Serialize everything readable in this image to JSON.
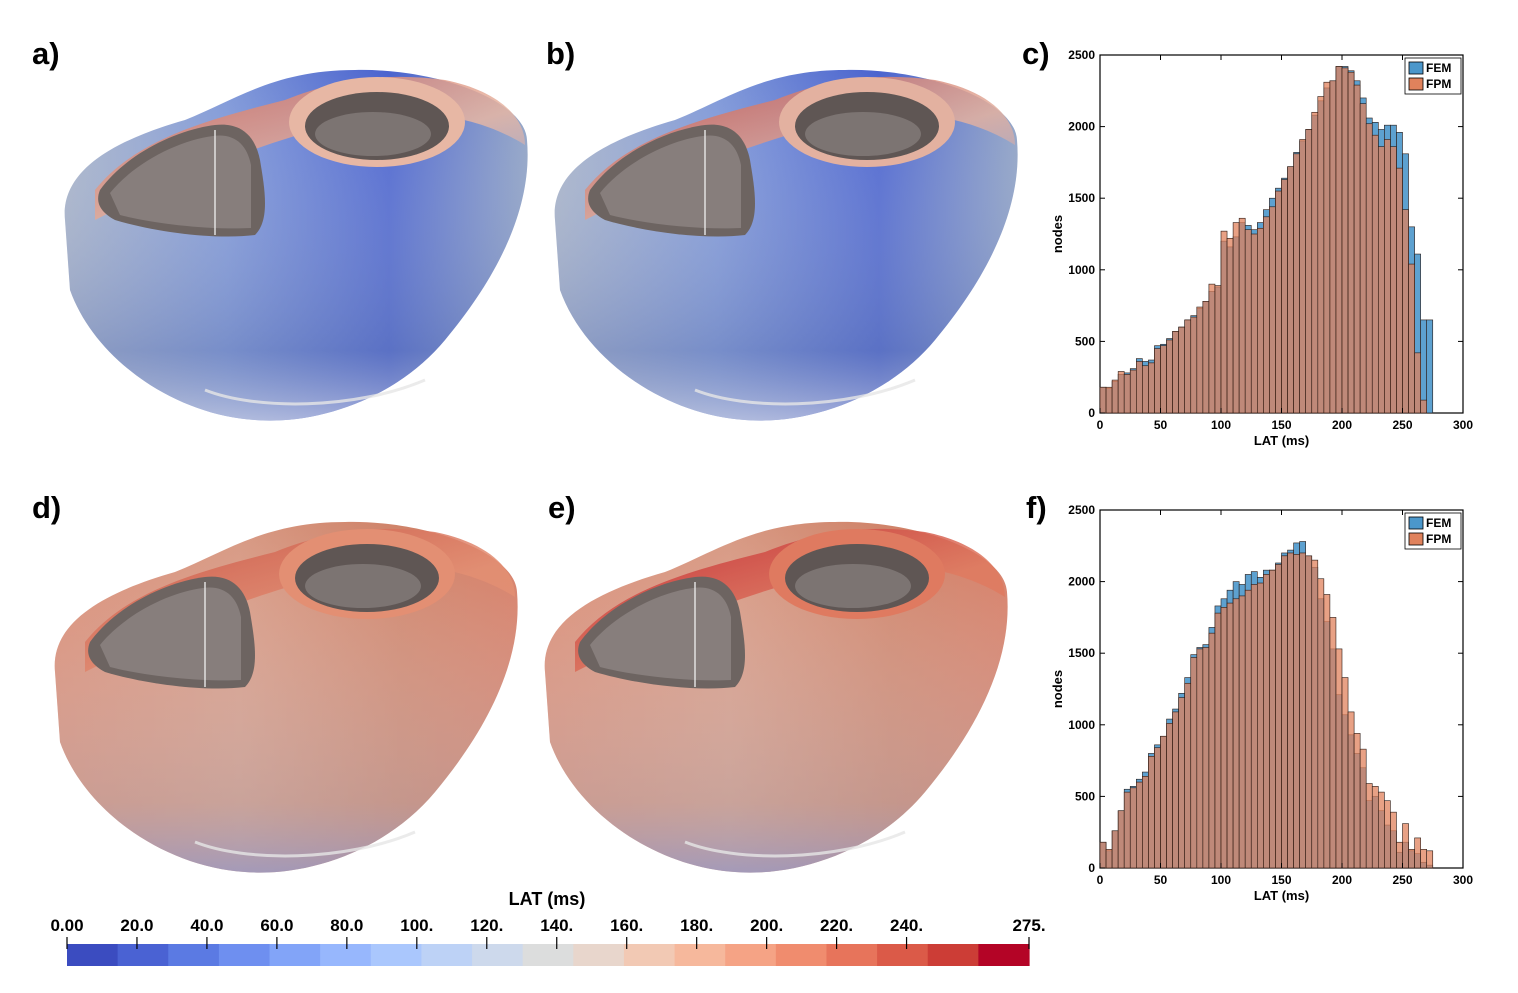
{
  "panels": {
    "a": "a)",
    "b": "b)",
    "c": "c)",
    "d": "d)",
    "e": "e)",
    "f": "f)"
  },
  "colorbar": {
    "title": "LAT (ms)",
    "tick_labels": [
      "0.00",
      "20.0",
      "40.0",
      "60.0",
      "80.0",
      "100.",
      "120.",
      "140.",
      "160.",
      "180.",
      "200.",
      "220.",
      "240.",
      "275."
    ],
    "tick_values": [
      0,
      20,
      40,
      60,
      80,
      100,
      120,
      140,
      160,
      180,
      200,
      220,
      240,
      275
    ],
    "range": [
      0,
      275
    ],
    "colors": [
      "#3b4cc0",
      "#4a62d3",
      "#5b7ae3",
      "#6e8ff0",
      "#82a4f8",
      "#97b7fd",
      "#aac7fd",
      "#bdd2f6",
      "#cdd9ec",
      "#dcdddd",
      "#e8d6cc",
      "#f2c9b4",
      "#f6b89c",
      "#f5a385",
      "#f08c6e",
      "#e7745b",
      "#db5a48",
      "#cc3d36",
      "#b40426"
    ]
  },
  "heart_panels": [
    {
      "panel": "a",
      "colormap": "blue",
      "rim": "#e7b7a4",
      "top": "#d26150"
    },
    {
      "panel": "b",
      "colormap": "blue",
      "rim": "#e3b1a0",
      "top": "#c94b3e"
    },
    {
      "panel": "d",
      "colormap": "red",
      "rim": "#e38f73",
      "top": "#c94b3e"
    },
    {
      "panel": "e",
      "colormap": "red",
      "rim": "#df7a60",
      "top": "#c21d2a"
    }
  ],
  "chart_data": [
    {
      "type": "bar",
      "panel": "c",
      "xlabel": "LAT (ms)",
      "ylabel": "nodes",
      "xlim": [
        0,
        300
      ],
      "ylim": [
        0,
        2500
      ],
      "xticks": [
        0,
        50,
        100,
        150,
        200,
        250,
        300
      ],
      "yticks": [
        0,
        500,
        1000,
        1500,
        2000,
        2500
      ],
      "bin_width": 5,
      "bin_starts": [
        0,
        5,
        10,
        15,
        20,
        25,
        30,
        35,
        40,
        45,
        50,
        55,
        60,
        65,
        70,
        75,
        80,
        85,
        90,
        95,
        100,
        105,
        110,
        115,
        120,
        125,
        130,
        135,
        140,
        145,
        150,
        155,
        160,
        165,
        170,
        175,
        180,
        185,
        190,
        195,
        200,
        205,
        210,
        215,
        220,
        225,
        230,
        235,
        240,
        245,
        250,
        255,
        260,
        265,
        270
      ],
      "legend": "top-right",
      "series": [
        {
          "name": "FEM",
          "color": "#4b97cb",
          "values": [
            180,
            170,
            220,
            270,
            280,
            310,
            380,
            360,
            370,
            470,
            480,
            520,
            570,
            600,
            650,
            680,
            730,
            780,
            850,
            880,
            1200,
            1160,
            1230,
            1330,
            1310,
            1280,
            1330,
            1420,
            1500,
            1570,
            1640,
            1720,
            1820,
            1900,
            1980,
            2080,
            2180,
            2270,
            2320,
            2420,
            2420,
            2390,
            2320,
            2200,
            2060,
            2030,
            1980,
            2010,
            2010,
            1960,
            1810,
            1300,
            1110,
            650,
            650
          ]
        },
        {
          "name": "FPM",
          "color": "#e0825c",
          "values": [
            180,
            180,
            230,
            290,
            270,
            300,
            360,
            330,
            350,
            450,
            470,
            510,
            570,
            600,
            650,
            670,
            740,
            780,
            900,
            890,
            1270,
            1220,
            1330,
            1360,
            1280,
            1250,
            1290,
            1370,
            1440,
            1550,
            1630,
            1720,
            1810,
            1910,
            1980,
            2100,
            2210,
            2310,
            2320,
            2420,
            2410,
            2380,
            2290,
            2160,
            2020,
            1940,
            1860,
            1910,
            1860,
            1710,
            1420,
            1040,
            420,
            90,
            0
          ]
        }
      ]
    },
    {
      "type": "bar",
      "panel": "f",
      "xlabel": "LAT (ms)",
      "ylabel": "nodes",
      "xlim": [
        0,
        300
      ],
      "ylim": [
        0,
        2500
      ],
      "xticks": [
        0,
        50,
        100,
        150,
        200,
        250,
        300
      ],
      "yticks": [
        0,
        500,
        1000,
        1500,
        2000,
        2500
      ],
      "bin_width": 5,
      "bin_starts": [
        0,
        5,
        10,
        15,
        20,
        25,
        30,
        35,
        40,
        45,
        50,
        55,
        60,
        65,
        70,
        75,
        80,
        85,
        90,
        95,
        100,
        105,
        110,
        115,
        120,
        125,
        130,
        135,
        140,
        145,
        150,
        155,
        160,
        165,
        170,
        175,
        180,
        185,
        190,
        195,
        200,
        205,
        210,
        215,
        220,
        225,
        230,
        235,
        240,
        245,
        250,
        255,
        260,
        265,
        270
      ],
      "legend": "top-right",
      "series": [
        {
          "name": "FEM",
          "color": "#4b97cb",
          "values": [
            180,
            120,
            260,
            400,
            550,
            570,
            620,
            670,
            800,
            860,
            920,
            1040,
            1110,
            1220,
            1330,
            1490,
            1540,
            1560,
            1680,
            1830,
            1880,
            1940,
            2000,
            1980,
            2050,
            2070,
            2030,
            2080,
            2080,
            2130,
            2200,
            2220,
            2270,
            2280,
            2180,
            2100,
            1880,
            1720,
            1530,
            1210,
            1070,
            930,
            800,
            700,
            470,
            500,
            400,
            300,
            260,
            110,
            180,
            120,
            100,
            40,
            20
          ]
        },
        {
          "name": "FPM",
          "color": "#e0825c",
          "values": [
            180,
            130,
            260,
            400,
            530,
            560,
            600,
            640,
            780,
            840,
            920,
            1010,
            1090,
            1190,
            1290,
            1470,
            1530,
            1540,
            1640,
            1780,
            1820,
            1850,
            1880,
            1900,
            1940,
            1980,
            1990,
            2050,
            2080,
            2120,
            2180,
            2200,
            2190,
            2200,
            2180,
            2150,
            2020,
            1910,
            1750,
            1530,
            1330,
            1090,
            940,
            830,
            590,
            570,
            530,
            470,
            390,
            180,
            310,
            130,
            210,
            130,
            120
          ]
        }
      ]
    }
  ]
}
